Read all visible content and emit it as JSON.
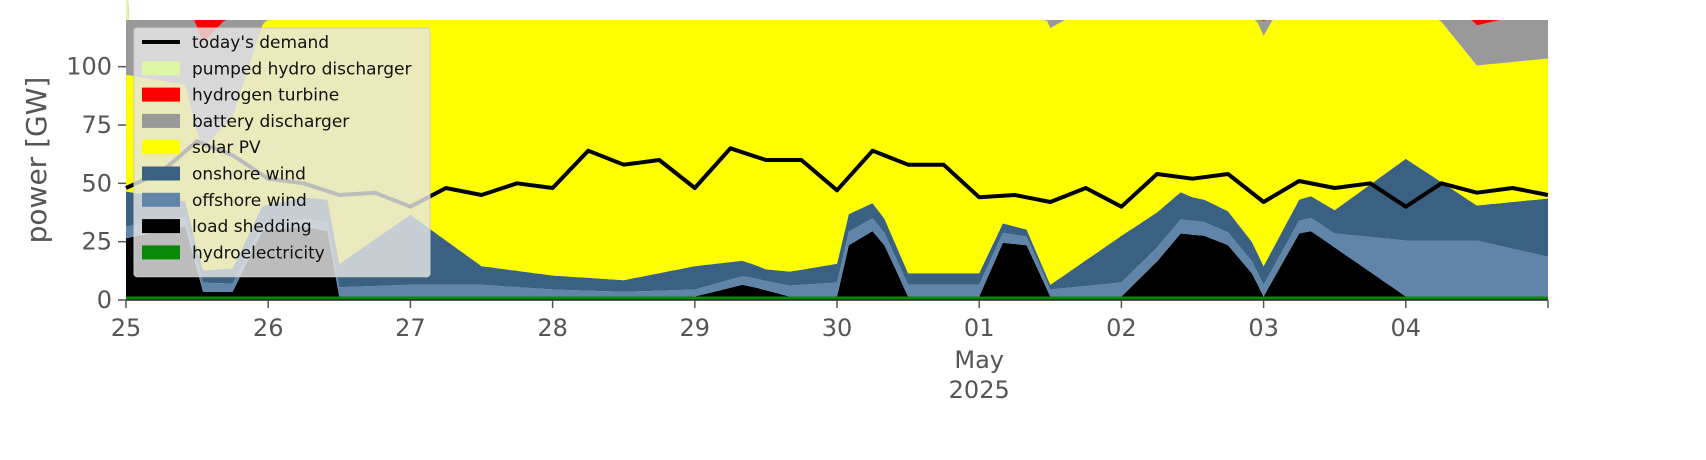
{
  "chart_data": {
    "type": "area",
    "title": "",
    "ylabel": "power [GW]",
    "xlabel": "",
    "ylim": [
      0,
      120
    ],
    "yticks": [
      0,
      25,
      50,
      75,
      100
    ],
    "x_range_days": [
      "2025-04-25",
      "2025-05-05"
    ],
    "x_ticks": [
      {
        "date": "2025-04-25",
        "label": "25"
      },
      {
        "date": "2025-04-26",
        "label": "26"
      },
      {
        "date": "2025-04-27",
        "label": "27"
      },
      {
        "date": "2025-04-28",
        "label": "28"
      },
      {
        "date": "2025-04-29",
        "label": "29"
      },
      {
        "date": "2025-04-30",
        "label": "30"
      },
      {
        "date": "2025-05-01",
        "label": "01"
      },
      {
        "date": "2025-05-02",
        "label": "02"
      },
      {
        "date": "2025-05-03",
        "label": "03"
      },
      {
        "date": "2025-05-04",
        "label": "04"
      }
    ],
    "month_label": "May",
    "year_label": "2025",
    "grid": false,
    "legend_position": "top-left",
    "legend": [
      {
        "name": "today's demand",
        "color": "#000000",
        "kind": "line"
      },
      {
        "name": "pumped hydro discharger",
        "color": "#dcf7a6",
        "kind": "patch"
      },
      {
        "name": "hydrogen turbine",
        "color": "#ff0000",
        "kind": "patch"
      },
      {
        "name": "battery discharger",
        "color": "#999999",
        "kind": "patch"
      },
      {
        "name": "solar PV",
        "color": "#ffff00",
        "kind": "patch"
      },
      {
        "name": "onshore wind",
        "color": "#3b6182",
        "kind": "patch"
      },
      {
        "name": "offshore wind",
        "color": "#6185a8",
        "kind": "patch"
      },
      {
        "name": "load shedding",
        "color": "#000000",
        "kind": "patch"
      },
      {
        "name": "hydroelectricity",
        "color": "#088a08",
        "kind": "patch"
      }
    ],
    "stack_order": [
      "hydroelectricity",
      "load shedding",
      "offshore wind",
      "onshore wind",
      "solar PV",
      "battery discharger",
      "hydrogen turbine",
      "pumped hydro discharger"
    ],
    "series": [
      {
        "name": "hydroelectricity",
        "color": "#088a08",
        "x": [
          "2025-04-25",
          "2025-05-05"
        ],
        "values": [
          1.5,
          1.5
        ]
      },
      {
        "name": "load shedding",
        "color": "#000000",
        "x": [
          "2025-04-25 00:00",
          "2025-04-25 06:00",
          "2025-04-25 10:00",
          "2025-04-25 13:00",
          "2025-04-25 18:00",
          "2025-04-25 23:00",
          "2025-04-26 06:00",
          "2025-04-26 10:00",
          "2025-04-26 12:00",
          "2025-04-29 00:00",
          "2025-04-29 08:00",
          "2025-04-29 10:00",
          "2025-04-29 16:00",
          "2025-04-30 00:00",
          "2025-04-30 02:00",
          "2025-04-30 06:00",
          "2025-04-30 08:00",
          "2025-04-30 12:00",
          "2025-05-01 00:00",
          "2025-05-01 04:00",
          "2025-05-01 08:00",
          "2025-05-01 12:00",
          "2025-05-02 00:00",
          "2025-05-02 06:00",
          "2025-05-02 10:00",
          "2025-05-02 14:00",
          "2025-05-02 18:00",
          "2025-05-02 22:00",
          "2025-05-03 00:00",
          "2025-05-03 06:00",
          "2025-05-03 08:00",
          "2025-05-04 00:00",
          "2025-05-05 00:00"
        ],
        "values": [
          25,
          28,
          30,
          2,
          2,
          28,
          30,
          28,
          0,
          0,
          5,
          4,
          0,
          0,
          22,
          28,
          22,
          0,
          0,
          23,
          22,
          0,
          0,
          15,
          27,
          26,
          22,
          10,
          0,
          27,
          28,
          0,
          0
        ]
      },
      {
        "name": "offshore wind",
        "color": "#6185a8",
        "x": [
          "2025-04-25 00:00",
          "2025-04-25 12:00",
          "2025-04-26 00:00",
          "2025-04-26 12:00",
          "2025-04-27 00:00",
          "2025-04-27 12:00",
          "2025-04-28 00:00",
          "2025-04-28 12:00",
          "2025-04-29 00:00",
          "2025-04-29 12:00",
          "2025-04-30 00:00",
          "2025-04-30 12:00",
          "2025-05-01 00:00",
          "2025-05-01 12:00",
          "2025-05-02 00:00",
          "2025-05-02 12:00",
          "2025-05-03 00:00",
          "2025-05-03 12:00",
          "2025-05-04 00:00",
          "2025-05-04 12:00",
          "2025-05-05 00:00"
        ],
        "values": [
          5,
          4,
          3,
          4,
          5,
          5,
          3,
          2,
          3,
          4,
          6,
          5,
          5,
          3,
          6,
          6,
          5,
          6,
          24,
          24,
          17
        ]
      },
      {
        "name": "onshore wind",
        "color": "#3b6182",
        "x": [
          "2025-04-25 00:00",
          "2025-04-25 12:00",
          "2025-04-26 00:00",
          "2025-04-26 12:00",
          "2025-04-27 00:00",
          "2025-04-27 12:00",
          "2025-04-28 00:00",
          "2025-04-28 12:00",
          "2025-04-29 00:00",
          "2025-04-29 12:00",
          "2025-04-30 00:00",
          "2025-04-30 12:00",
          "2025-05-01 00:00",
          "2025-05-01 12:00",
          "2025-05-02 00:00",
          "2025-05-02 12:00",
          "2025-05-03 00:00",
          "2025-05-03 12:00",
          "2025-05-04 00:00",
          "2025-05-04 12:00",
          "2025-05-05 00:00"
        ],
        "values": [
          15,
          5,
          8,
          10,
          30,
          8,
          6,
          5,
          10,
          5,
          8,
          5,
          5,
          2,
          20,
          10,
          8,
          10,
          35,
          15,
          25
        ]
      },
      {
        "name": "solar PV",
        "color": "#ffff00",
        "x": [
          "2025-04-25 12:00",
          "2025-04-26 12:00",
          "2025-04-27 12:00",
          "2025-04-28 12:00",
          "2025-04-29 12:00",
          "2025-04-30 12:00",
          "2025-05-01 12:00",
          "2025-05-03 12:00",
          "2025-05-04 12:00"
        ],
        "values": [
          50,
          110,
          115,
          115,
          110,
          110,
          110,
          95,
          60
        ]
      },
      {
        "name": "battery discharger",
        "color": "#999999",
        "x": [
          "2025-04-27 20:00",
          "2025-04-28 04:00",
          "2025-04-28 20:00",
          "2025-04-29 04:00",
          "2025-04-29 20:00",
          "2025-04-30 04:00",
          "2025-04-30 20:00",
          "2025-05-01 04:00",
          "2025-05-01 20:00",
          "2025-05-02 04:00",
          "2025-05-03 04:00",
          "2025-05-04 20:00"
        ],
        "values": [
          45,
          30,
          50,
          22,
          52,
          10,
          50,
          10,
          45,
          8,
          6,
          20
        ]
      },
      {
        "name": "hydrogen turbine",
        "color": "#ff0000",
        "x": [
          "2025-04-28 04:00",
          "2025-04-29 04:00",
          "2025-04-30 04:00",
          "2025-05-01 04:00",
          "2025-05-02 12:00",
          "2025-05-03 00:00"
        ],
        "values": [
          25,
          15,
          6,
          3,
          5,
          3
        ]
      },
      {
        "name": "pumped hydro discharger",
        "color": "#dcf7a6",
        "x": [
          "2025-04-28 04:00",
          "2025-04-29 04:00",
          "2025-04-30 04:00",
          "2025-05-01 04:00",
          "2025-05-02 12:00"
        ],
        "values": [
          3,
          4,
          3,
          2,
          1
        ]
      }
    ],
    "demand": {
      "name": "today's demand",
      "x": [
        "2025-04-25 00:00",
        "2025-04-25 06:00",
        "2025-04-25 12:00",
        "2025-04-25 18:00",
        "2025-04-26 00:00",
        "2025-04-26 06:00",
        "2025-04-26 12:00",
        "2025-04-26 18:00",
        "2025-04-27 00:00",
        "2025-04-27 06:00",
        "2025-04-27 12:00",
        "2025-04-27 18:00",
        "2025-04-28 00:00",
        "2025-04-28 06:00",
        "2025-04-28 12:00",
        "2025-04-28 18:00",
        "2025-04-29 00:00",
        "2025-04-29 06:00",
        "2025-04-29 12:00",
        "2025-04-29 18:00",
        "2025-04-30 00:00",
        "2025-04-30 06:00",
        "2025-04-30 12:00",
        "2025-04-30 18:00",
        "2025-05-01 00:00",
        "2025-05-01 06:00",
        "2025-05-01 12:00",
        "2025-05-01 18:00",
        "2025-05-02 00:00",
        "2025-05-02 06:00",
        "2025-05-02 12:00",
        "2025-05-02 18:00",
        "2025-05-03 00:00",
        "2025-05-03 06:00",
        "2025-05-03 12:00",
        "2025-05-03 18:00",
        "2025-05-04 00:00",
        "2025-05-04 06:00",
        "2025-05-04 12:00",
        "2025-05-04 18:00",
        "2025-05-05 00:00"
      ],
      "values": [
        48,
        55,
        68,
        62,
        52,
        50,
        45,
        46,
        40,
        48,
        45,
        50,
        48,
        64,
        58,
        60,
        48,
        65,
        60,
        60,
        47,
        64,
        58,
        58,
        44,
        45,
        42,
        48,
        40,
        54,
        52,
        54,
        42,
        51,
        48,
        50,
        40,
        50,
        46,
        48,
        45
      ]
    }
  }
}
